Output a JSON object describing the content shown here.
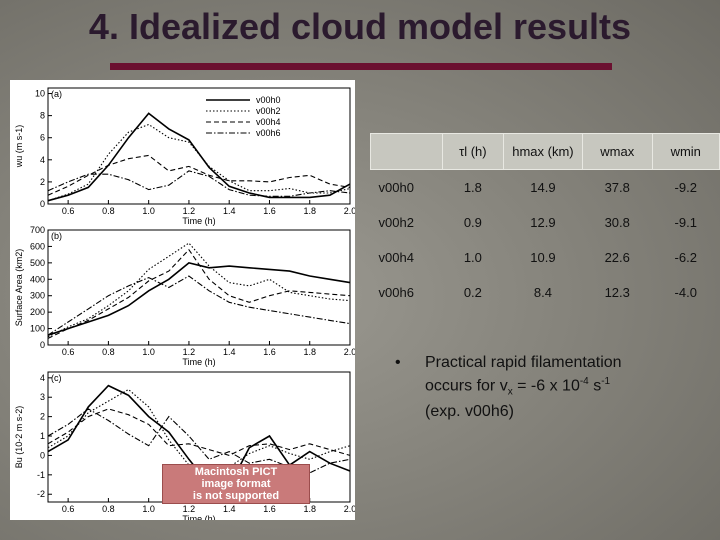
{
  "title": "4. Idealized cloud model results",
  "figure": {
    "panels": [
      {
        "letter": "(a)",
        "ylabel": "wu (m s-1)",
        "yticks": [
          "0",
          "2",
          "4",
          "6",
          "8",
          "10"
        ],
        "xticks": [
          "0.6",
          "0.8",
          "1.0",
          "1.2",
          "1.4",
          "1.6",
          "1.8",
          "2.0"
        ],
        "xlabel": "Time (h)",
        "legend": [
          "v00h0",
          "v00h2",
          "v00h4",
          "v00h6"
        ]
      },
      {
        "letter": "(b)",
        "ylabel": "Surface Area (km2)",
        "yticks": [
          "0",
          "100",
          "200",
          "300",
          "400",
          "500",
          "600",
          "700"
        ],
        "xticks": [
          "0.6",
          "0.8",
          "1.0",
          "1.2",
          "1.4",
          "1.6",
          "1.8",
          "2.0"
        ],
        "xlabel": "Time (h)"
      },
      {
        "letter": "(c)",
        "ylabel": "Bu (10-2 m s-2)",
        "yticks": [
          "-2",
          "-1",
          "0",
          "1",
          "2",
          "3",
          "4"
        ],
        "xticks": [
          "0.6",
          "0.8",
          "1.0",
          "1.2",
          "1.4",
          "1.6",
          "1.8",
          "2.0"
        ],
        "xlabel": "Time (h)"
      }
    ],
    "placeholder": [
      "Macintosh PICT",
      "image format",
      "is not supported"
    ]
  },
  "table": {
    "header": {
      "t": "τl (h)",
      "h": "hmax (km)",
      "w": "wmax",
      "wmin": "wmin"
    },
    "rows": [
      {
        "label": "v00h0",
        "t": "1.8",
        "h": "14.9",
        "w": "37.8",
        "wmin": "-9.2"
      },
      {
        "label": "v00h2",
        "t": "0.9",
        "h": "12.9",
        "w": "30.8",
        "wmin": "-9.1"
      },
      {
        "label": "v00h4",
        "t": "1.0",
        "h": "10.9",
        "w": "22.6",
        "wmin": "-6.2"
      },
      {
        "label": "v00h6",
        "t": "0.2",
        "h": "8.4",
        "w": "12.3",
        "wmin": "-4.0"
      }
    ]
  },
  "bullet": {
    "symbol": "•",
    "line1": "Practical rapid filamentation",
    "line2_pre": "occurs for v",
    "line2_sub": "x",
    "line2_mid": " = -6 x 10",
    "line2_sup1": "-4",
    "line2_post": " s",
    "line2_sup2": "-1",
    "line3": "(exp. v00h6)"
  },
  "chart_data": [
    {
      "type": "line",
      "ylabel": "wu (m s-1)",
      "xlabel": "Time (h)",
      "ylim": [
        0,
        10.5
      ],
      "x": [
        0.5,
        0.6,
        0.7,
        0.8,
        0.9,
        1.0,
        1.1,
        1.2,
        1.3,
        1.4,
        1.5,
        1.6,
        1.7,
        1.8,
        1.9,
        2.0
      ],
      "series": [
        {
          "name": "v00h0",
          "style": "solid",
          "values": [
            0.3,
            0.8,
            1.5,
            3.5,
            6.0,
            8.2,
            6.8,
            5.8,
            3.3,
            1.6,
            1.0,
            0.6,
            0.6,
            0.6,
            0.8,
            1.8
          ]
        },
        {
          "name": "v00h2",
          "style": "dotted",
          "values": [
            0.3,
            0.9,
            1.8,
            4.5,
            6.5,
            7.2,
            6.0,
            5.6,
            3.4,
            2.1,
            1.2,
            1.2,
            1.4,
            1.0,
            1.0,
            1.4
          ]
        },
        {
          "name": "v00h4",
          "style": "dashed",
          "values": [
            0.8,
            1.6,
            2.6,
            3.5,
            4.1,
            4.4,
            3.0,
            3.4,
            2.6,
            2.1,
            2.1,
            2.0,
            2.4,
            2.6,
            1.8,
            1.5
          ]
        },
        {
          "name": "v00h6",
          "style": "dashdot",
          "values": [
            1.2,
            2.0,
            2.7,
            2.7,
            2.2,
            1.3,
            1.7,
            3.0,
            2.5,
            1.3,
            0.8,
            0.7,
            0.7,
            1.0,
            1.2,
            1.0
          ]
        }
      ]
    },
    {
      "type": "line",
      "ylabel": "Surface Area (km2)",
      "xlabel": "Time (h)",
      "ylim": [
        0,
        700
      ],
      "x": [
        0.5,
        0.6,
        0.7,
        0.8,
        0.9,
        1.0,
        1.1,
        1.2,
        1.3,
        1.4,
        1.5,
        1.6,
        1.7,
        1.8,
        1.9,
        2.0
      ],
      "series": [
        {
          "name": "v00h0",
          "style": "solid",
          "values": [
            60,
            100,
            140,
            180,
            240,
            330,
            400,
            500,
            470,
            480,
            470,
            460,
            450,
            420,
            400,
            380
          ]
        },
        {
          "name": "v00h2",
          "style": "dotted",
          "values": [
            50,
            110,
            160,
            240,
            330,
            460,
            540,
            620,
            480,
            380,
            360,
            400,
            320,
            300,
            280,
            270
          ]
        },
        {
          "name": "v00h4",
          "style": "dashed",
          "values": [
            40,
            100,
            150,
            220,
            290,
            390,
            450,
            580,
            400,
            300,
            260,
            300,
            330,
            320,
            310,
            300
          ]
        },
        {
          "name": "v00h6",
          "style": "dashdot",
          "values": [
            60,
            140,
            220,
            300,
            360,
            410,
            350,
            420,
            330,
            260,
            230,
            210,
            190,
            170,
            150,
            130
          ]
        }
      ]
    },
    {
      "type": "line",
      "ylabel": "Bu (10-2 m s-2)",
      "xlabel": "Time (h)",
      "ylim": [
        -2.4,
        4.3
      ],
      "x": [
        0.5,
        0.6,
        0.7,
        0.8,
        0.9,
        1.0,
        1.1,
        1.2,
        1.3,
        1.4,
        1.5,
        1.6,
        1.7,
        1.8,
        1.9,
        2.0
      ],
      "series": [
        {
          "name": "v00h0",
          "style": "solid",
          "values": [
            0.2,
            0.8,
            2.5,
            3.6,
            3.1,
            2.0,
            1.2,
            -0.2,
            -1.5,
            -1.6,
            0.4,
            1.0,
            -0.5,
            0.2,
            -0.4,
            -0.8
          ]
        },
        {
          "name": "v00h2",
          "style": "dotted",
          "values": [
            0.4,
            1.0,
            2.2,
            2.8,
            3.4,
            2.5,
            0.8,
            -0.5,
            -1.2,
            -0.6,
            0.1,
            0.5,
            0.1,
            -0.2,
            0.2,
            0.5
          ]
        },
        {
          "name": "v00h4",
          "style": "dashed",
          "values": [
            0.6,
            1.2,
            2.0,
            2.4,
            2.1,
            1.6,
            0.5,
            0.6,
            0.3,
            0.0,
            0.5,
            0.6,
            0.3,
            0.6,
            0.3,
            0.0
          ]
        },
        {
          "name": "v00h6",
          "style": "dashdot",
          "values": [
            1.0,
            1.6,
            2.4,
            1.8,
            1.1,
            0.5,
            2.0,
            1.0,
            -0.2,
            0.2,
            -0.4,
            -0.2,
            -0.6,
            -0.9,
            -0.4,
            -0.2
          ]
        }
      ]
    }
  ]
}
